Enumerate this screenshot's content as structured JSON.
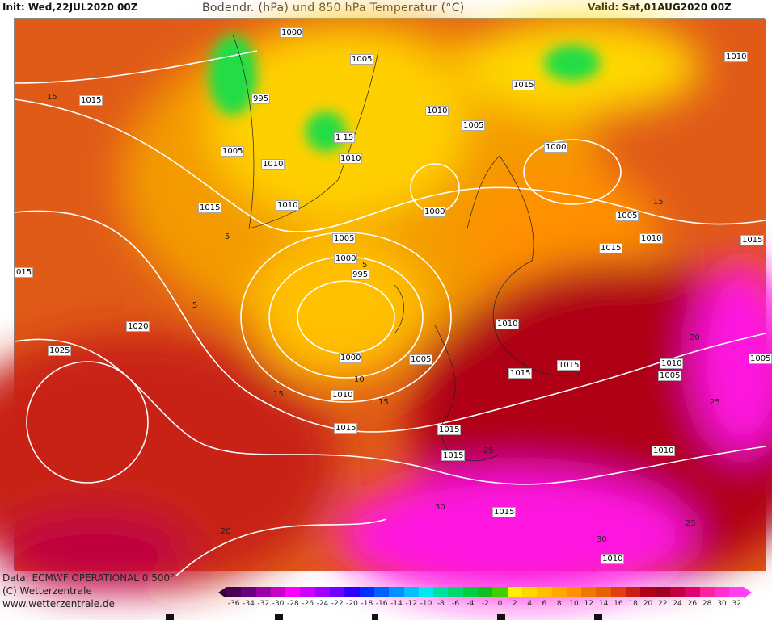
{
  "header": {
    "init": "Init: Wed,22JUL2020 00Z",
    "title": "Bodendr. (hPa) und 850 hPa Temperatur (°C)",
    "valid": "Valid: Sat,01AUG2020 00Z"
  },
  "map": {
    "isobar_labels": [
      "1000",
      "1005",
      "995",
      "1015",
      "1010",
      "1015",
      "1010",
      "1005",
      "1005",
      "1010",
      "1 15",
      "1010",
      "1000",
      "1010",
      "1015",
      "1000",
      "1005",
      "1010",
      "1015",
      "1015",
      "1005",
      "1000",
      "995",
      "015",
      "1020",
      "1010",
      "1025",
      "1000",
      "1005",
      "1010",
      "1005",
      "1005",
      "1015",
      "1015",
      "1010",
      "1015",
      "1015",
      "1015",
      "1010",
      "1015",
      "1010"
    ],
    "temperature_labels": [
      "15",
      "5",
      "5",
      "15",
      "5",
      "10",
      "15",
      "20",
      "25",
      "25",
      "30",
      "20",
      "30",
      "25",
      "15"
    ],
    "colors": {
      "cold": "#fff200",
      "mild": "#f39a00",
      "warm": "#e0481a",
      "hot": "#b8001e",
      "very_hot": "#ff18e0",
      "isobar": "#ffffff",
      "land_snow": "#22dd44"
    }
  },
  "footer": {
    "data": "Data: ECMWF OPERATIONAL 0.500°",
    "copyright": "(C) Wetterzentrale",
    "url": "www.wetterzentrale.de"
  },
  "colorbar": {
    "labels": [
      "-36",
      "-34",
      "-32",
      "-30",
      "-28",
      "-26",
      "-24",
      "-22",
      "-20",
      "-18",
      "-16",
      "-14",
      "-12",
      "-10",
      "-8",
      "-6",
      "-4",
      "-2",
      "0",
      "2",
      "4",
      "6",
      "8",
      "10",
      "12",
      "14",
      "16",
      "18",
      "20",
      "22",
      "24",
      "26",
      "28",
      "30",
      "32"
    ],
    "colors": [
      "#4a0050",
      "#6a0080",
      "#9a00a8",
      "#c800c8",
      "#ff00ff",
      "#d000ff",
      "#a000ff",
      "#7000ff",
      "#3000ff",
      "#0030ff",
      "#0060ff",
      "#0090ff",
      "#00c0ff",
      "#00e8f0",
      "#00e0a0",
      "#00d870",
      "#00d040",
      "#10c020",
      "#40d000",
      "#fff000",
      "#ffd800",
      "#ffc000",
      "#ffa800",
      "#ff9000",
      "#f07800",
      "#e86000",
      "#e04010",
      "#c82018",
      "#b00018",
      "#a00020",
      "#c00040",
      "#e00070",
      "#ff20a0",
      "#ff30d0",
      "#ff40f0"
    ],
    "low_end_color": "#300030",
    "high_end_color": "#ff40ff"
  }
}
